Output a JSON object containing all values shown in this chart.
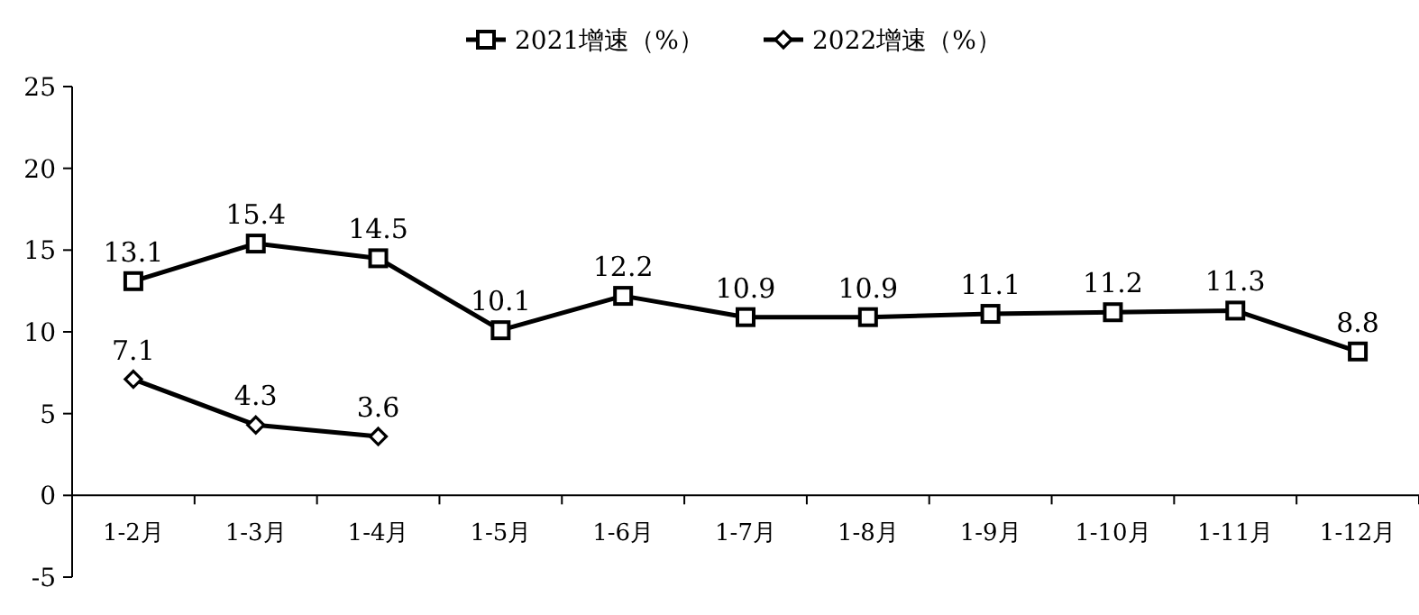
{
  "chart_data": {
    "type": "line",
    "categories": [
      "1-2月",
      "1-3月",
      "1-4月",
      "1-5月",
      "1-6月",
      "1-7月",
      "1-8月",
      "1-9月",
      "1-10月",
      "1-11月",
      "1-12月"
    ],
    "series": [
      {
        "name": "2021增速（%）",
        "color": "#000000",
        "marker": "square",
        "values": [
          13.1,
          15.4,
          14.5,
          10.1,
          12.2,
          10.9,
          10.9,
          11.1,
          11.2,
          11.3,
          8.8
        ]
      },
      {
        "name": "2022增速（%）",
        "color": "#000000",
        "marker": "diamond",
        "values": [
          7.1,
          4.3,
          3.6,
          null,
          null,
          null,
          null,
          null,
          null,
          null,
          null
        ]
      }
    ],
    "ylim": [
      -5,
      25
    ],
    "yticks": [
      -5,
      0,
      5,
      10,
      15,
      20,
      25
    ],
    "data_labels": true,
    "legend": "top",
    "grid": false,
    "line_style": "solid"
  }
}
